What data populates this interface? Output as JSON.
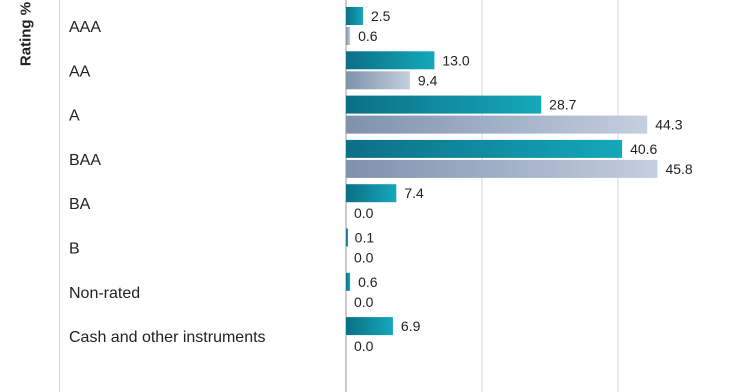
{
  "chart_data": {
    "type": "bar",
    "orientation": "horizontal",
    "ylabel": "Rating %",
    "categories": [
      "AAA",
      "AA",
      "A",
      "BAA",
      "BA",
      "B",
      "Non-rated",
      "Cash and other instruments"
    ],
    "series": [
      {
        "values": [
          2.5,
          13.0,
          28.7,
          40.6,
          7.4,
          0.1,
          0.6,
          6.9
        ],
        "color": "#14a3b5"
      },
      {
        "values": [
          0.6,
          9.4,
          44.3,
          45.8,
          0.0,
          0.0,
          0.0,
          0.0
        ],
        "color": "#b6c4d8"
      }
    ],
    "value_labels": [
      [
        "2.5",
        "13.0",
        "28.7",
        "40.6",
        "7.4",
        "0.1",
        "0.6",
        "6.9"
      ],
      [
        "0.6",
        "9.4",
        "44.3",
        "45.8",
        "0.0",
        "0.0",
        "0.0",
        "0.0"
      ]
    ],
    "xlim": [
      0,
      50
    ],
    "gridlines_at": [
      0,
      20,
      40
    ],
    "grid": true,
    "legend": "none"
  }
}
